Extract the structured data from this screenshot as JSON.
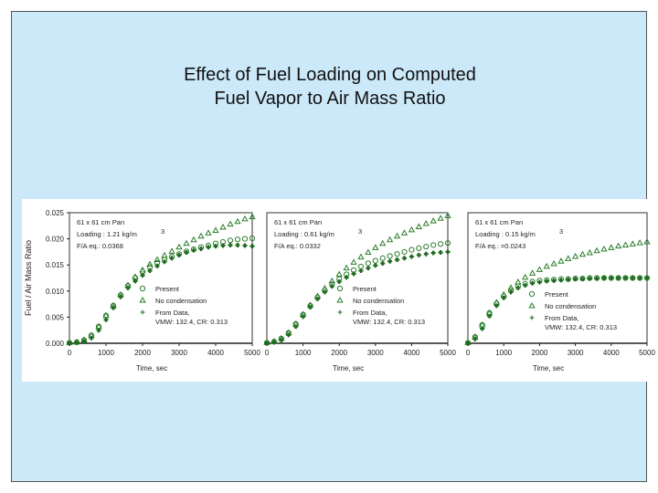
{
  "slide": {
    "title_line1": "Effect of Fuel Loading on Computed",
    "title_line2": "Fuel Vapor to Air Mass Ratio"
  },
  "figure": {
    "ylabel": "Fuel / Air  Mass Ratio",
    "xlabel": "Time, sec"
  },
  "chart_data": [
    {
      "type": "scatter",
      "panel": "left",
      "xlabel": "Time, sec",
      "ylabel": "Fuel / Air  Mass Ratio",
      "xlim": [
        0,
        5000
      ],
      "ylim": [
        0,
        0.025
      ],
      "xticks": [
        "0",
        "1000",
        "2000",
        "3000",
        "4000",
        "5000"
      ],
      "yticks": [
        "0.000",
        "0.005",
        "0.010",
        "0.015",
        "0.020",
        "0.025"
      ],
      "info": [
        "61 x 61  cm Pan",
        "Loading : 1.21 kg/m",
        "F/A eq.: 0.0368"
      ],
      "superscript": "3",
      "legend": [
        "Present",
        "No condensation",
        "From Data,",
        "VMW: 132.4,  CR: 0.313"
      ],
      "series": [
        {
          "name": "Present",
          "marker": "circle",
          "x": [
            0,
            200,
            400,
            600,
            800,
            1000,
            1200,
            1400,
            1600,
            1800,
            2000,
            2200,
            2400,
            2600,
            2800,
            3000,
            3200,
            3400,
            3600,
            3800,
            4000,
            4200,
            4400,
            4600,
            4800,
            5000
          ],
          "y": [
            0.0001,
            0.0002,
            0.0006,
            0.0015,
            0.0032,
            0.0053,
            0.0072,
            0.0092,
            0.011,
            0.0125,
            0.0137,
            0.0146,
            0.0154,
            0.016,
            0.0166,
            0.0171,
            0.0176,
            0.018,
            0.0184,
            0.0187,
            0.0191,
            0.0194,
            0.0197,
            0.0199,
            0.02,
            0.0201
          ]
        },
        {
          "name": "No condensation",
          "marker": "triangle",
          "x": [
            0,
            200,
            400,
            600,
            800,
            1000,
            1200,
            1400,
            1600,
            1800,
            2000,
            2200,
            2400,
            2600,
            2800,
            3000,
            3200,
            3400,
            3600,
            3800,
            4000,
            4200,
            4400,
            4600,
            4800,
            5000
          ],
          "y": [
            0.0001,
            0.0002,
            0.0006,
            0.0015,
            0.0032,
            0.0053,
            0.0072,
            0.0093,
            0.0111,
            0.0127,
            0.014,
            0.0151,
            0.016,
            0.0168,
            0.0176,
            0.0184,
            0.0191,
            0.0198,
            0.0205,
            0.0211,
            0.0216,
            0.0222,
            0.0228,
            0.0233,
            0.0238,
            0.0242
          ]
        },
        {
          "name": "From Data",
          "marker": "plus",
          "x": [
            0,
            200,
            400,
            600,
            800,
            1000,
            1200,
            1400,
            1600,
            1800,
            2000,
            2200,
            2400,
            2600,
            2800,
            3000,
            3200,
            3400,
            3600,
            3800,
            4000,
            4200,
            4400,
            4600,
            4800,
            5000
          ],
          "y": [
            0,
            0.0001,
            0.0003,
            0.001,
            0.0025,
            0.0045,
            0.0068,
            0.0089,
            0.0106,
            0.0119,
            0.013,
            0.0139,
            0.0148,
            0.0156,
            0.0163,
            0.0169,
            0.0174,
            0.0178,
            0.0181,
            0.0184,
            0.0186,
            0.0187,
            0.0188,
            0.0188,
            0.0187,
            0.0186
          ]
        }
      ]
    },
    {
      "type": "scatter",
      "panel": "middle",
      "xlabel": "Time, sec",
      "xlim": [
        0,
        5000
      ],
      "ylim": [
        0,
        0.025
      ],
      "xticks": [
        "0",
        "1000",
        "2000",
        "3000",
        "4000",
        "5000"
      ],
      "info": [
        "61 x 61  cm Pan",
        "Loading : 0.61 kg/m",
        "F/A eq.: 0.0332"
      ],
      "superscript": "3",
      "legend": [
        "Present",
        "No condensation",
        "From Data,",
        "VMW: 132.4,  CR: 0.313"
      ],
      "series": [
        {
          "name": "Present",
          "marker": "circle",
          "x": [
            0,
            200,
            400,
            600,
            800,
            1000,
            1200,
            1400,
            1600,
            1800,
            2000,
            2200,
            2400,
            2600,
            2800,
            3000,
            3200,
            3400,
            3600,
            3800,
            4000,
            4200,
            4400,
            4600,
            4800,
            5000
          ],
          "y": [
            0.0001,
            0.0003,
            0.0009,
            0.002,
            0.0037,
            0.0055,
            0.0072,
            0.0088,
            0.0101,
            0.0113,
            0.0123,
            0.0132,
            0.014,
            0.0147,
            0.0153,
            0.0158,
            0.0163,
            0.0167,
            0.0171,
            0.0175,
            0.0179,
            0.0182,
            0.0185,
            0.0188,
            0.019,
            0.0192
          ]
        },
        {
          "name": "No condensation",
          "marker": "triangle",
          "x": [
            0,
            200,
            400,
            600,
            800,
            1000,
            1200,
            1400,
            1600,
            1800,
            2000,
            2200,
            2400,
            2600,
            2800,
            3000,
            3200,
            3400,
            3600,
            3800,
            4000,
            4200,
            4400,
            4600,
            4800,
            5000
          ],
          "y": [
            0.0001,
            0.0003,
            0.0009,
            0.002,
            0.0037,
            0.0055,
            0.0073,
            0.009,
            0.0105,
            0.0119,
            0.0132,
            0.0144,
            0.0155,
            0.0165,
            0.0174,
            0.0183,
            0.0191,
            0.0198,
            0.0205,
            0.0211,
            0.0217,
            0.0223,
            0.0229,
            0.0234,
            0.0239,
            0.0244
          ]
        },
        {
          "name": "From Data",
          "marker": "plus",
          "x": [
            0,
            200,
            400,
            600,
            800,
            1000,
            1200,
            1400,
            1600,
            1800,
            2000,
            2200,
            2400,
            2600,
            2800,
            3000,
            3200,
            3400,
            3600,
            3800,
            4000,
            4200,
            4400,
            4600,
            4800,
            5000
          ],
          "y": [
            0,
            0.0002,
            0.0006,
            0.0016,
            0.0032,
            0.0051,
            0.0069,
            0.0085,
            0.0098,
            0.0109,
            0.0118,
            0.0126,
            0.0133,
            0.0139,
            0.0144,
            0.0149,
            0.0153,
            0.0157,
            0.016,
            0.0163,
            0.0166,
            0.0169,
            0.0171,
            0.0173,
            0.0174,
            0.0175
          ]
        }
      ]
    },
    {
      "type": "scatter",
      "panel": "right",
      "xlabel": "Time, sec",
      "xlim": [
        0,
        5000
      ],
      "ylim": [
        0,
        0.025
      ],
      "xticks": [
        "0",
        "1000",
        "2000",
        "3000",
        "4000",
        "5000"
      ],
      "info": [
        "61 x 61  cm Pan",
        "Loading : 0.15 kg/m",
        "F/A eq.: =0.0243"
      ],
      "superscript": "3",
      "legend": [
        "Present",
        "No condensation",
        "From Data,",
        "VMW: 132.4,  CR: 0.313"
      ],
      "series": [
        {
          "name": "Present",
          "marker": "circle",
          "x": [
            0,
            200,
            400,
            600,
            800,
            1000,
            1200,
            1400,
            1600,
            1800,
            2000,
            2200,
            2400,
            2600,
            2800,
            3000,
            3200,
            3400,
            3600,
            3800,
            4000,
            4200,
            4400,
            4600,
            4800,
            5000
          ],
          "y": [
            0.0001,
            0.0012,
            0.0035,
            0.0058,
            0.0076,
            0.009,
            0.0101,
            0.0109,
            0.0114,
            0.0118,
            0.012,
            0.0121,
            0.0122,
            0.0123,
            0.0123,
            0.0124,
            0.0124,
            0.0125,
            0.0125,
            0.0125,
            0.0125,
            0.0125,
            0.0125,
            0.0125,
            0.0125,
            0.0125
          ]
        },
        {
          "name": "No condensation",
          "marker": "triangle",
          "x": [
            0,
            200,
            400,
            600,
            800,
            1000,
            1200,
            1400,
            1600,
            1800,
            2000,
            2200,
            2400,
            2600,
            2800,
            3000,
            3200,
            3400,
            3600,
            3800,
            4000,
            4200,
            4400,
            4600,
            4800,
            5000
          ],
          "y": [
            0.0001,
            0.0012,
            0.0035,
            0.0058,
            0.0078,
            0.0093,
            0.0106,
            0.0117,
            0.0126,
            0.0134,
            0.0141,
            0.0147,
            0.0152,
            0.0157,
            0.0162,
            0.0166,
            0.017,
            0.0173,
            0.0177,
            0.018,
            0.0183,
            0.0186,
            0.0188,
            0.019,
            0.0192,
            0.0194
          ]
        },
        {
          "name": "From Data",
          "marker": "plus",
          "x": [
            0,
            200,
            400,
            600,
            800,
            1000,
            1200,
            1400,
            1600,
            1800,
            2000,
            2200,
            2400,
            2600,
            2800,
            3000,
            3200,
            3400,
            3600,
            3800,
            4000,
            4200,
            4400,
            4600,
            4800,
            5000
          ],
          "y": [
            0,
            0.0008,
            0.0028,
            0.0052,
            0.0072,
            0.0087,
            0.0098,
            0.0106,
            0.0111,
            0.0115,
            0.0117,
            0.0119,
            0.012,
            0.0121,
            0.0122,
            0.0123,
            0.0123,
            0.0124,
            0.0124,
            0.0125,
            0.0125,
            0.0125,
            0.0125,
            0.0125,
            0.0125,
            0.0125
          ]
        }
      ]
    }
  ]
}
